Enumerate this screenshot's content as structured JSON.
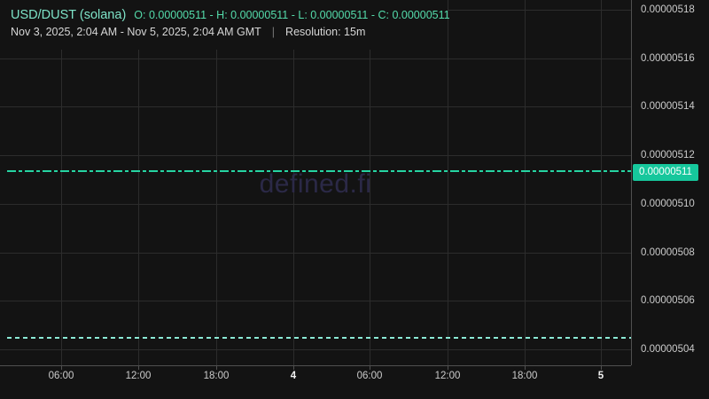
{
  "header": {
    "pair_title": "USD/DUST (solana)",
    "ohlc_summary": "O: 0.00000511 - H: 0.00000511 - L: 0.00000511 - C: 0.00000511",
    "date_range": "Nov 3, 2025, 2:04 AM - Nov 5, 2025, 2:04 AM GMT",
    "separator": "|",
    "resolution": "Resolution: 15m"
  },
  "watermark": "defined.fi",
  "colors": {
    "background": "#131313",
    "grid": "#2c2c2c",
    "axis_border": "#505050",
    "axis_label": "#cbcbcb",
    "day_label": "#f2f2f2",
    "title_teal": "#7ee3c8",
    "ohlc_green": "#54dcab",
    "subtitle_gray": "#d6d6d6",
    "price_line": "#26d4a2",
    "secondary_line": "#8bead5",
    "price_badge_bg": "#16c79c",
    "price_badge_text": "#ffffff",
    "watermark": "#2b2947"
  },
  "chart_data": {
    "type": "line",
    "pair": "USD/DUST",
    "network": "solana",
    "resolution": "15m",
    "time_range": "Nov 3, 2025, 2:04 AM - Nov 5, 2025, 2:04 AM GMT",
    "ohlc": {
      "open": "0.00000511",
      "high": "0.00000511",
      "low": "0.00000511",
      "close": "0.00000511"
    },
    "y_axis": {
      "ticks": [
        "0.00000518",
        "0.00000516",
        "0.00000514",
        "0.00000512",
        "0.00000510",
        "0.00000508",
        "0.00000506",
        "0.00000504"
      ],
      "range": [
        5.04e-06,
        5.18e-06
      ]
    },
    "x_axis": {
      "ticks": [
        {
          "label": "06:00",
          "emphasis": false
        },
        {
          "label": "12:00",
          "emphasis": false
        },
        {
          "label": "18:00",
          "emphasis": false
        },
        {
          "label": "4",
          "emphasis": true
        },
        {
          "label": "06:00",
          "emphasis": false
        },
        {
          "label": "12:00",
          "emphasis": false
        },
        {
          "label": "18:00",
          "emphasis": false
        },
        {
          "label": "5",
          "emphasis": true
        }
      ]
    },
    "series": [
      {
        "name": "current-price",
        "style": "dash-dot",
        "value": 5.11e-06,
        "label": "0.00000511"
      },
      {
        "name": "reference-low",
        "style": "dashed",
        "value": 5.05e-06,
        "label": ""
      }
    ]
  }
}
